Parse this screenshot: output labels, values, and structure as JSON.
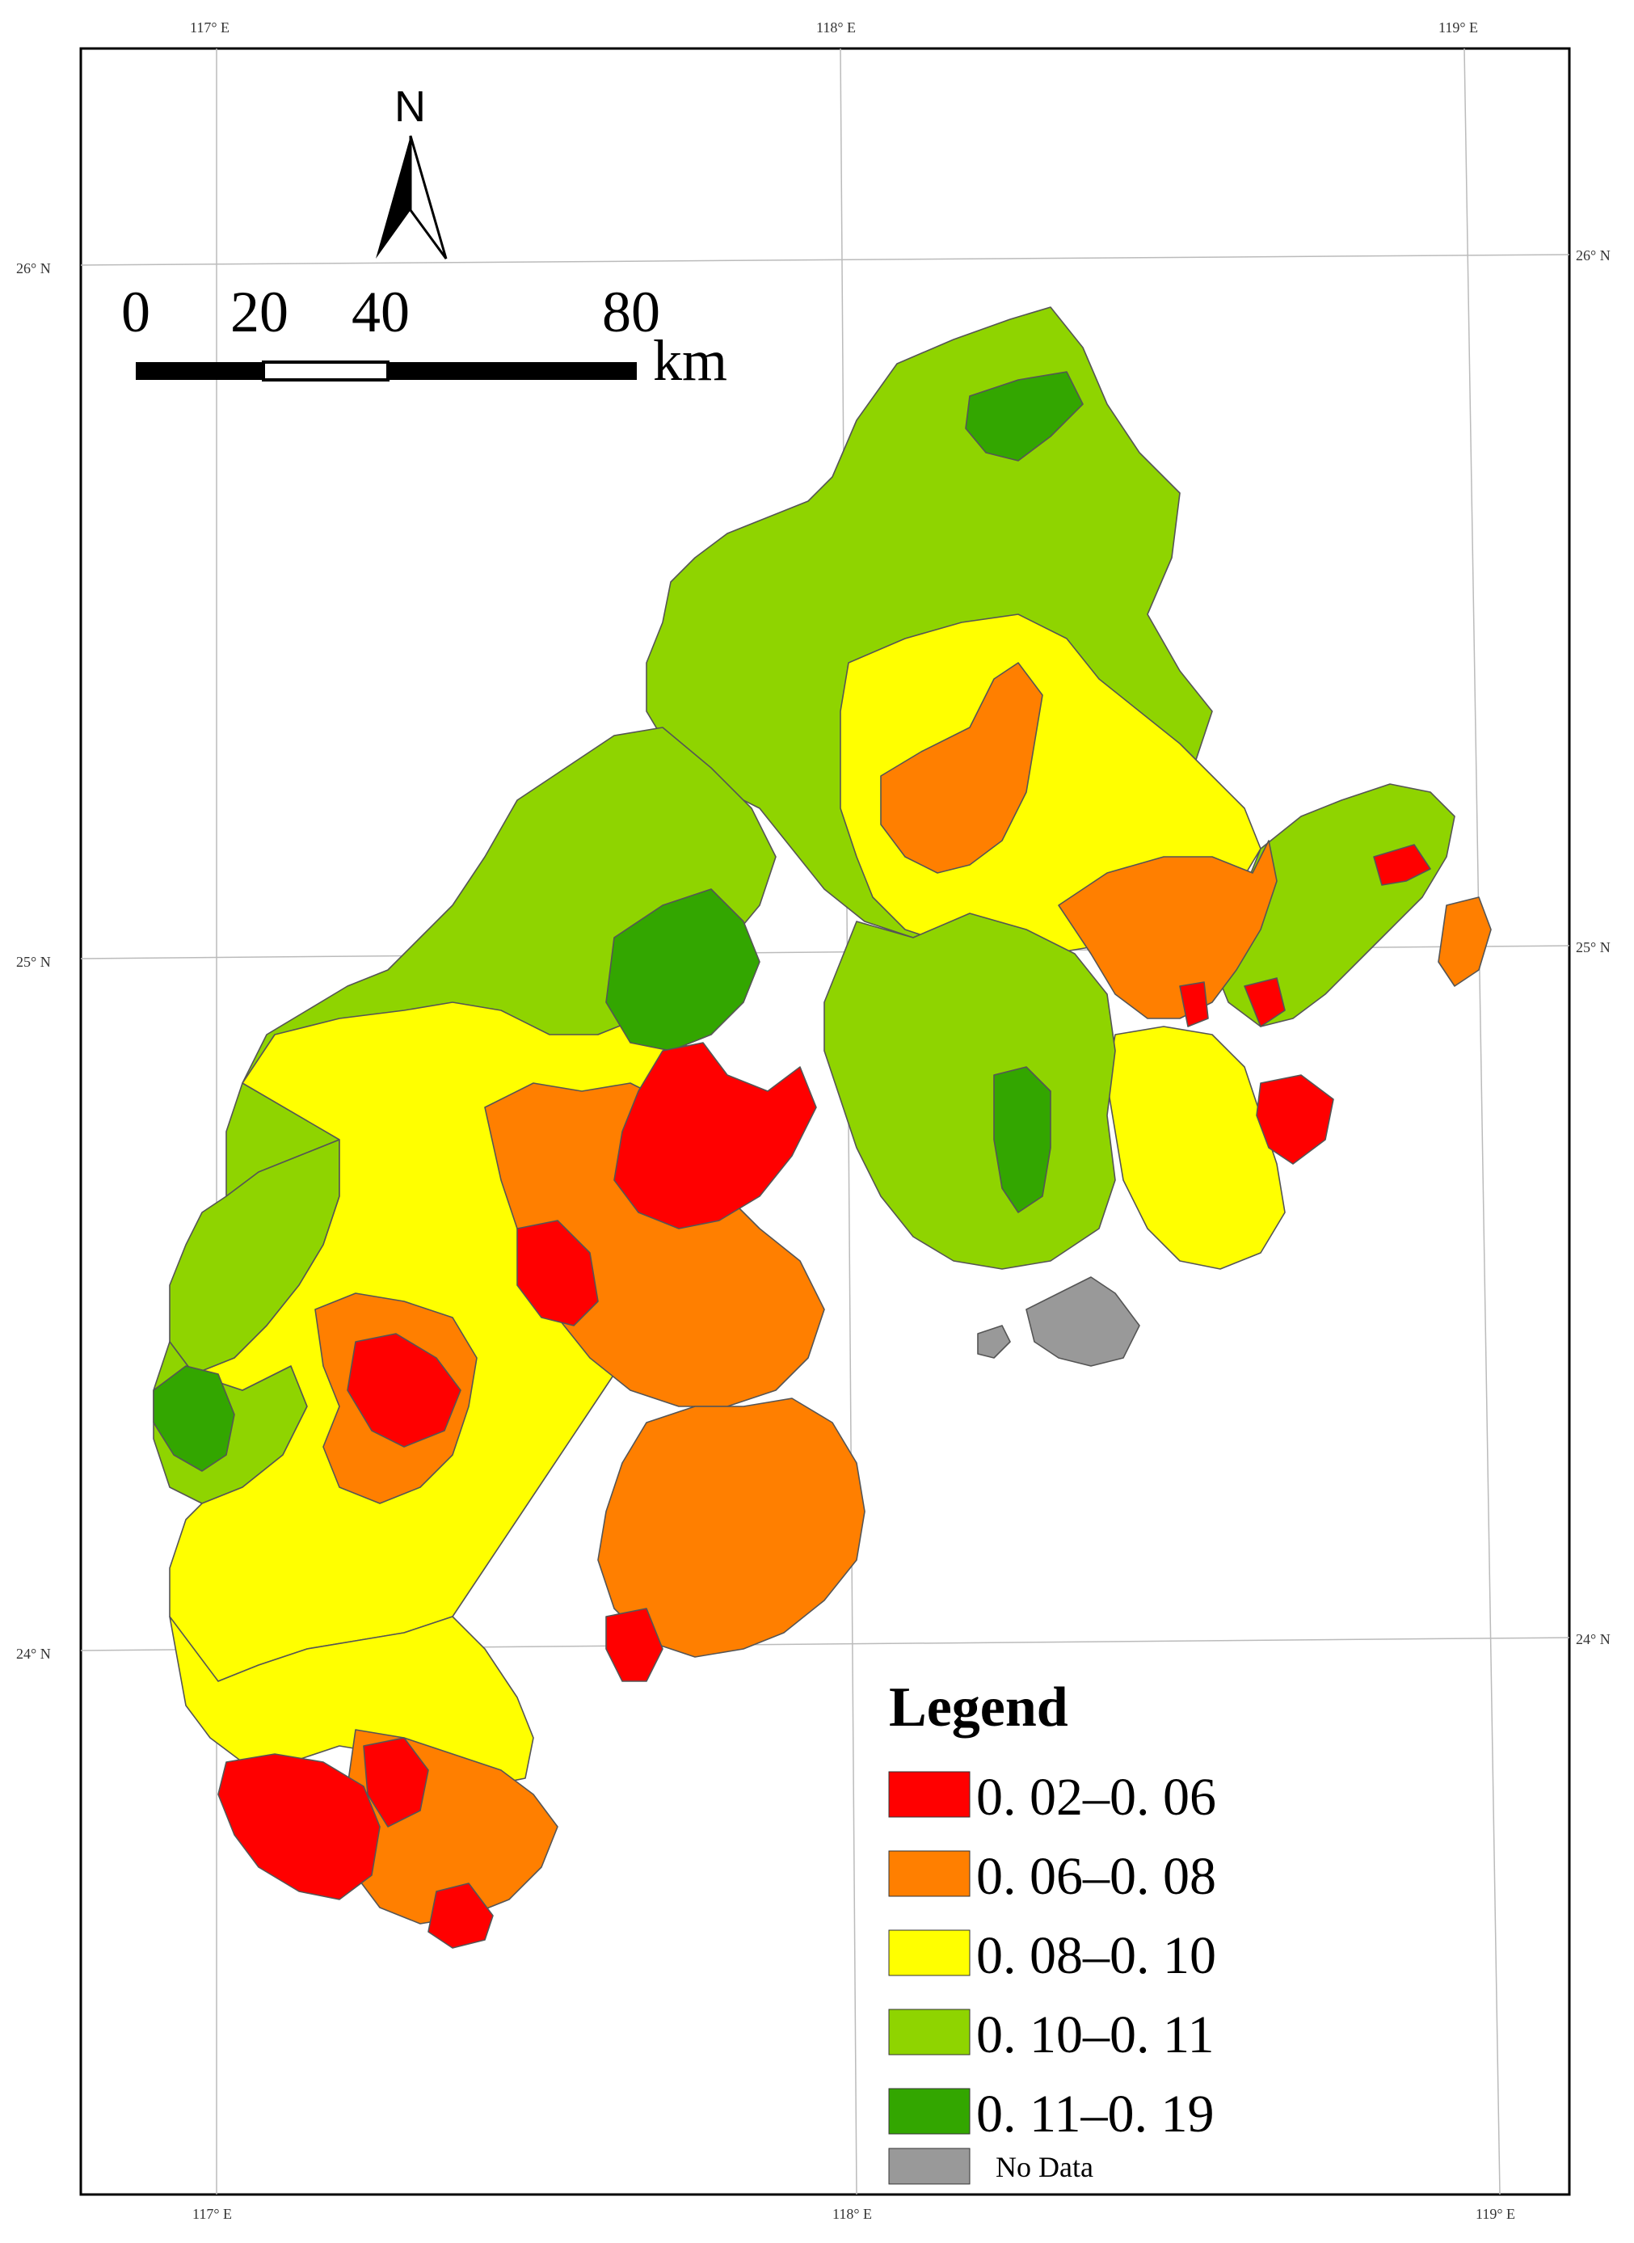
{
  "grid_labels": {
    "top": [
      "117° E",
      "118° E",
      "119° E"
    ],
    "bottom": [
      "117° E",
      "118° E",
      "119° E"
    ],
    "left": [
      "26° N",
      "25° N",
      "24° N"
    ],
    "right": [
      "26° N",
      "25° N",
      "24° N"
    ]
  },
  "north_arrow": {
    "label": "N"
  },
  "scale_bar": {
    "ticks": [
      "0",
      "20",
      "40",
      "80"
    ],
    "unit": "km"
  },
  "legend": {
    "title": "Legend",
    "classes": [
      {
        "label": "0. 02–0. 06",
        "color": "#ff0000"
      },
      {
        "label": "0. 06–0. 08",
        "color": "#ff7f00"
      },
      {
        "label": "0. 08–0. 10",
        "color": "#ffff00"
      },
      {
        "label": "0. 10–0. 11",
        "color": "#8fd400"
      },
      {
        "label": "0. 11–0. 19",
        "color": "#33a600"
      }
    ],
    "no_data": {
      "label": "No Data",
      "color": "#999999"
    }
  },
  "colors": {
    "red": "#ff0000",
    "orange": "#ff7f00",
    "yellow": "#ffff00",
    "lightgreen": "#8fd400",
    "darkgreen": "#33a600",
    "nodata": "#999999",
    "frame": "#000000",
    "graticule": "#bbbbbb"
  }
}
